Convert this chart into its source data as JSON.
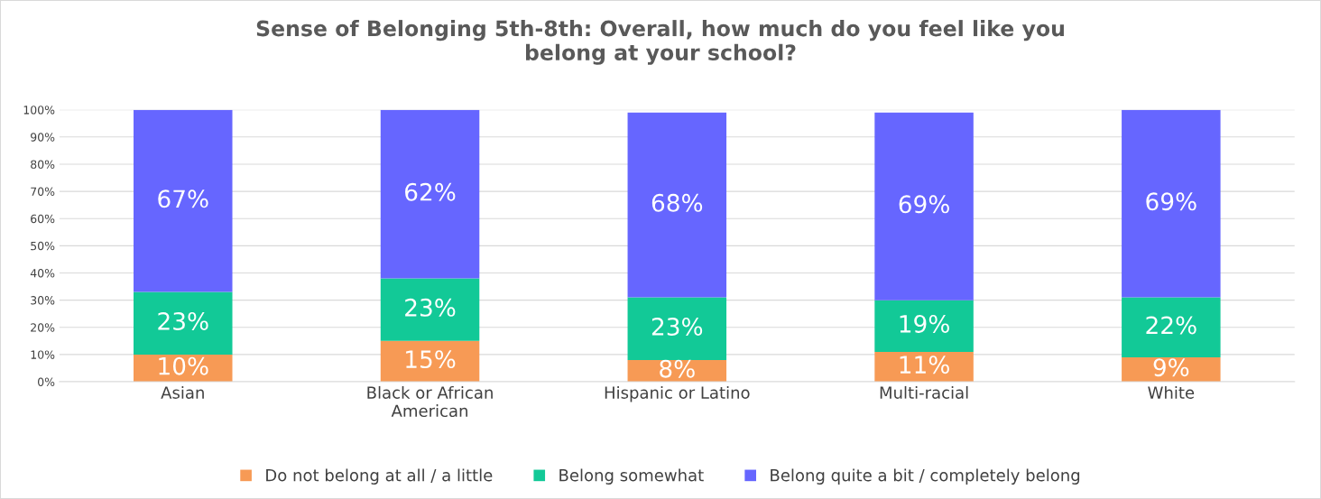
{
  "chart_data": {
    "type": "bar",
    "stacked": true,
    "title": "Sense of Belonging 5th-8th: Overall, how much do you feel like you\nbelong at your school?",
    "categories": [
      "Asian",
      "Black or African\nAmerican",
      "Hispanic or Latino",
      "Multi-racial",
      "White"
    ],
    "series": [
      {
        "name": "Do not belong at all / a little",
        "color": "#f79a55",
        "values": [
          10,
          15,
          8,
          11,
          9
        ],
        "value_labels": [
          "10%",
          "15%",
          "8%",
          "11%",
          "9%"
        ]
      },
      {
        "name": "Belong somewhat",
        "color": "#12c997",
        "values": [
          23,
          23,
          23,
          19,
          22
        ],
        "value_labels": [
          "23%",
          "23%",
          "23%",
          "19%",
          "22%"
        ]
      },
      {
        "name": "Belong quite a bit / completely belong",
        "color": "#6666ff",
        "values": [
          67,
          62,
          68,
          69,
          69
        ],
        "value_labels": [
          "67%",
          "62%",
          "68%",
          "69%",
          "69%"
        ]
      }
    ],
    "ylim": [
      0,
      100
    ],
    "yticks": [
      {
        "value": 0,
        "label": "0%"
      },
      {
        "value": 10,
        "label": "10%"
      },
      {
        "value": 20,
        "label": "20%"
      },
      {
        "value": 30,
        "label": "30%"
      },
      {
        "value": 40,
        "label": "40%"
      },
      {
        "value": 50,
        "label": "50%"
      },
      {
        "value": 60,
        "label": "60%"
      },
      {
        "value": 70,
        "label": "70%"
      },
      {
        "value": 80,
        "label": "80%"
      },
      {
        "value": 90,
        "label": "90%"
      },
      {
        "value": 100,
        "label": "100%"
      }
    ],
    "grid": "y",
    "legend": "bottom"
  }
}
